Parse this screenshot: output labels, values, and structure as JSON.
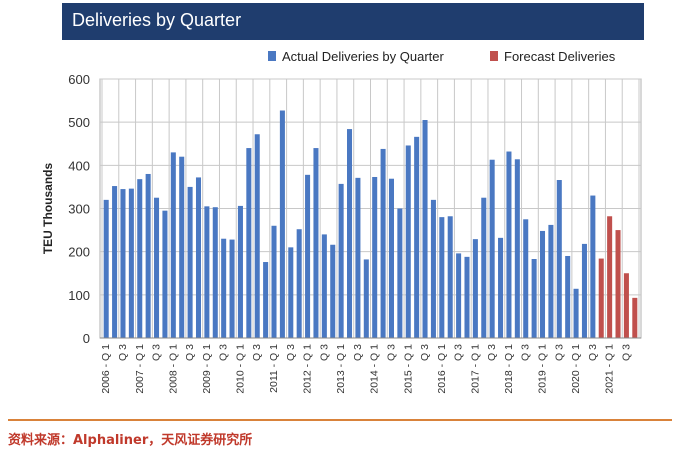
{
  "title": "Deliveries by Quarter",
  "source": "资料来源：Alphaliner，天风证券研究所",
  "colors": {
    "actual": "#4a78c2",
    "forecast": "#c0504d",
    "title_bg": "#1f3d6e",
    "grid": "#c8c8c8"
  },
  "chart_data": {
    "type": "bar",
    "title": "Deliveries by Quarter",
    "ylabel": "TEU Thousands",
    "xlabel": "",
    "ylim": [
      0,
      600
    ],
    "yticks": [
      0,
      100,
      200,
      300,
      400,
      500,
      600
    ],
    "grid": true,
    "legend": "top-right",
    "x_tick_labels": [
      "2006 - Q 1",
      "Q 3",
      "2007 - Q 1",
      "Q 3",
      "2008 - Q 1",
      "Q 3",
      "2009 - Q 1",
      "Q 3",
      "2010 - Q 1",
      "Q 3",
      "2011 - Q 1",
      "Q 3",
      "2012 - Q 1",
      "Q 3",
      "2013 - Q 1",
      "Q 3",
      "2014 - Q 1",
      "Q 3",
      "2015 - Q 1",
      "Q 3",
      "2016 - Q 1",
      "Q 3",
      "2017 - Q 1",
      "Q 3",
      "2018 - Q 1",
      "Q 3",
      "2019 - Q 1",
      "Q 3",
      "2020 - Q 1",
      "Q 3",
      "2021 - Q 1",
      "Q 3"
    ],
    "series": [
      {
        "name": "Actual Deliveries by Quarter",
        "values": [
          320,
          352,
          345,
          346,
          368,
          380,
          325,
          295,
          430,
          420,
          350,
          372,
          305,
          303,
          230,
          228,
          306,
          440,
          472,
          176,
          260,
          527,
          210,
          252,
          378,
          440,
          240,
          216,
          357,
          484,
          371,
          182,
          373,
          438,
          369,
          300,
          446,
          466,
          505,
          320,
          280,
          282,
          196,
          188,
          229,
          325,
          413,
          232,
          432,
          414,
          275,
          183,
          248,
          262,
          366,
          190,
          114,
          218,
          330
        ]
      },
      {
        "name": "Forecast Deliveries",
        "values": [
          184,
          282,
          250,
          150,
          93
        ]
      }
    ]
  }
}
